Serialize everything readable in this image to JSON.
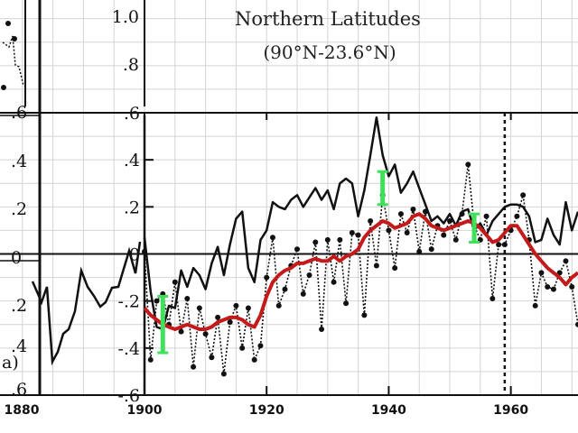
{
  "chart_data": {
    "type": "line",
    "title": "Northern Latitudes",
    "subtitle": "(90°N-23.6°N)",
    "xlabel": "",
    "ylabel": "",
    "xlim": [
      1900,
      1971
    ],
    "ylim": [
      -0.6,
      0.6
    ],
    "x_ticks": [
      "1900",
      "1920",
      "1940",
      "1960"
    ],
    "y_ticks": [
      ".6",
      ".4",
      ".2",
      "0",
      "-.2",
      "-.4",
      "-.6"
    ],
    "upper_axis_ticks": [
      "1.0",
      ".8"
    ],
    "left_panel": {
      "label": "a)",
      "x_ticks": [
        "1880"
      ],
      "y_ticks": [
        ".6",
        ".4",
        ".2",
        "0",
        ".2",
        ".4",
        ".6"
      ]
    },
    "reference_year": 1959,
    "grid": true,
    "series": [
      {
        "name": "",
        "style": "solid-black",
        "color": "#111111",
        "points": [
          [
            1900,
            0.07
          ],
          [
            1901,
            -0.16
          ],
          [
            1902,
            -0.31
          ],
          [
            1903,
            -0.32
          ],
          [
            1904,
            -0.22
          ],
          [
            1905,
            -0.23
          ],
          [
            1906,
            -0.07
          ],
          [
            1907,
            -0.14
          ],
          [
            1908,
            -0.06
          ],
          [
            1909,
            -0.09
          ],
          [
            1910,
            -0.15
          ],
          [
            1911,
            -0.04
          ],
          [
            1912,
            0.03
          ],
          [
            1913,
            -0.09
          ],
          [
            1914,
            0.04
          ],
          [
            1915,
            0.15
          ],
          [
            1916,
            0.18
          ],
          [
            1917,
            -0.06
          ],
          [
            1918,
            -0.12
          ],
          [
            1919,
            0.06
          ],
          [
            1920,
            0.1
          ],
          [
            1921,
            0.22
          ],
          [
            1922,
            0.2
          ],
          [
            1923,
            0.19
          ],
          [
            1924,
            0.23
          ],
          [
            1925,
            0.25
          ],
          [
            1926,
            0.2
          ],
          [
            1927,
            0.24
          ],
          [
            1928,
            0.28
          ],
          [
            1929,
            0.23
          ],
          [
            1930,
            0.27
          ],
          [
            1931,
            0.19
          ],
          [
            1932,
            0.3
          ],
          [
            1933,
            0.32
          ],
          [
            1934,
            0.3
          ],
          [
            1935,
            0.16
          ],
          [
            1936,
            0.27
          ],
          [
            1937,
            0.42
          ],
          [
            1938,
            0.58
          ],
          [
            1939,
            0.42
          ],
          [
            1940,
            0.33
          ],
          [
            1941,
            0.38
          ],
          [
            1942,
            0.26
          ],
          [
            1943,
            0.3
          ],
          [
            1944,
            0.35
          ],
          [
            1945,
            0.28
          ],
          [
            1946,
            0.21
          ],
          [
            1947,
            0.14
          ],
          [
            1948,
            0.16
          ],
          [
            1949,
            0.13
          ],
          [
            1950,
            0.17
          ],
          [
            1951,
            0.12
          ],
          [
            1952,
            0.18
          ],
          [
            1953,
            0.19
          ],
          [
            1954,
            0.1
          ],
          [
            1955,
            0.13
          ],
          [
            1956,
            0.08
          ],
          [
            1957,
            0.14
          ],
          [
            1958,
            0.17
          ],
          [
            1959,
            0.2
          ],
          [
            1960,
            0.21
          ],
          [
            1961,
            0.21
          ],
          [
            1962,
            0.2
          ],
          [
            1963,
            0.16
          ],
          [
            1964,
            0.05
          ],
          [
            1965,
            0.06
          ],
          [
            1966,
            0.15
          ],
          [
            1967,
            0.08
          ],
          [
            1968,
            0.04
          ],
          [
            1969,
            0.22
          ],
          [
            1970,
            0.1
          ],
          [
            1971,
            0.18
          ]
        ]
      },
      {
        "name": "",
        "style": "dotted-markers",
        "color": "#111111",
        "points": [
          [
            1900,
            0.01
          ],
          [
            1901,
            -0.45
          ],
          [
            1902,
            -0.2
          ],
          [
            1903,
            -0.17
          ],
          [
            1904,
            -0.3
          ],
          [
            1905,
            -0.12
          ],
          [
            1906,
            -0.33
          ],
          [
            1907,
            -0.19
          ],
          [
            1908,
            -0.48
          ],
          [
            1909,
            -0.23
          ],
          [
            1910,
            -0.34
          ],
          [
            1911,
            -0.44
          ],
          [
            1912,
            -0.27
          ],
          [
            1913,
            -0.51
          ],
          [
            1914,
            -0.29
          ],
          [
            1915,
            -0.22
          ],
          [
            1916,
            -0.4
          ],
          [
            1917,
            -0.23
          ],
          [
            1918,
            -0.45
          ],
          [
            1919,
            -0.39
          ],
          [
            1920,
            -0.1
          ],
          [
            1921,
            0.07
          ],
          [
            1922,
            -0.22
          ],
          [
            1923,
            -0.15
          ],
          [
            1924,
            -0.05
          ],
          [
            1925,
            0.02
          ],
          [
            1926,
            -0.17
          ],
          [
            1927,
            -0.09
          ],
          [
            1928,
            0.05
          ],
          [
            1929,
            -0.32
          ],
          [
            1930,
            0.06
          ],
          [
            1931,
            -0.12
          ],
          [
            1932,
            0.06
          ],
          [
            1933,
            -0.21
          ],
          [
            1934,
            0.09
          ],
          [
            1935,
            0.08
          ],
          [
            1936,
            -0.26
          ],
          [
            1937,
            0.14
          ],
          [
            1938,
            -0.05
          ],
          [
            1939,
            0.25
          ],
          [
            1940,
            0.1
          ],
          [
            1941,
            -0.06
          ],
          [
            1942,
            0.17
          ],
          [
            1943,
            0.09
          ],
          [
            1944,
            0.19
          ],
          [
            1945,
            0.01
          ],
          [
            1946,
            0.18
          ],
          [
            1947,
            0.02
          ],
          [
            1948,
            0.12
          ],
          [
            1949,
            0.08
          ],
          [
            1950,
            0.14
          ],
          [
            1951,
            0.06
          ],
          [
            1952,
            0.17
          ],
          [
            1953,
            0.38
          ],
          [
            1954,
            0.12
          ],
          [
            1955,
            0.06
          ],
          [
            1956,
            0.16
          ],
          [
            1957,
            -0.19
          ],
          [
            1958,
            0.04
          ],
          [
            1959,
            0.04
          ],
          [
            1960,
            0.1
          ],
          [
            1961,
            0.16
          ],
          [
            1962,
            0.25
          ],
          [
            1963,
            0.06
          ],
          [
            1964,
            -0.22
          ],
          [
            1965,
            -0.08
          ],
          [
            1966,
            -0.14
          ],
          [
            1967,
            -0.15
          ],
          [
            1968,
            -0.08
          ],
          [
            1969,
            -0.03
          ],
          [
            1970,
            -0.14
          ],
          [
            1971,
            -0.3
          ]
        ]
      },
      {
        "name": "",
        "style": "smoothed-red",
        "color": "#c41a1a",
        "points": [
          [
            1900,
            -0.23
          ],
          [
            1901,
            -0.26
          ],
          [
            1902,
            -0.28
          ],
          [
            1903,
            -0.3
          ],
          [
            1904,
            -0.31
          ],
          [
            1905,
            -0.32
          ],
          [
            1906,
            -0.31
          ],
          [
            1907,
            -0.3
          ],
          [
            1908,
            -0.31
          ],
          [
            1909,
            -0.32
          ],
          [
            1910,
            -0.32
          ],
          [
            1911,
            -0.31
          ],
          [
            1912,
            -0.29
          ],
          [
            1913,
            -0.28
          ],
          [
            1914,
            -0.27
          ],
          [
            1915,
            -0.27
          ],
          [
            1916,
            -0.28
          ],
          [
            1917,
            -0.3
          ],
          [
            1918,
            -0.31
          ],
          [
            1919,
            -0.26
          ],
          [
            1920,
            -0.18
          ],
          [
            1921,
            -0.12
          ],
          [
            1922,
            -0.09
          ],
          [
            1923,
            -0.07
          ],
          [
            1924,
            -0.06
          ],
          [
            1925,
            -0.04
          ],
          [
            1926,
            -0.04
          ],
          [
            1927,
            -0.03
          ],
          [
            1928,
            -0.02
          ],
          [
            1929,
            -0.03
          ],
          [
            1930,
            -0.03
          ],
          [
            1931,
            -0.01
          ],
          [
            1932,
            -0.03
          ],
          [
            1933,
            -0.01
          ],
          [
            1934,
            0.0
          ],
          [
            1935,
            0.02
          ],
          [
            1936,
            0.07
          ],
          [
            1937,
            0.1
          ],
          [
            1938,
            0.12
          ],
          [
            1939,
            0.14
          ],
          [
            1940,
            0.13
          ],
          [
            1941,
            0.11
          ],
          [
            1942,
            0.12
          ],
          [
            1943,
            0.13
          ],
          [
            1944,
            0.16
          ],
          [
            1945,
            0.17
          ],
          [
            1946,
            0.15
          ],
          [
            1947,
            0.12
          ],
          [
            1948,
            0.11
          ],
          [
            1949,
            0.1
          ],
          [
            1950,
            0.11
          ],
          [
            1951,
            0.12
          ],
          [
            1952,
            0.13
          ],
          [
            1953,
            0.14
          ],
          [
            1954,
            0.13
          ],
          [
            1955,
            0.11
          ],
          [
            1956,
            0.08
          ],
          [
            1957,
            0.05
          ],
          [
            1958,
            0.06
          ],
          [
            1959,
            0.09
          ],
          [
            1960,
            0.12
          ],
          [
            1961,
            0.12
          ],
          [
            1962,
            0.08
          ],
          [
            1963,
            0.04
          ],
          [
            1964,
            0.0
          ],
          [
            1965,
            -0.03
          ],
          [
            1966,
            -0.06
          ],
          [
            1967,
            -0.08
          ],
          [
            1968,
            -0.1
          ],
          [
            1969,
            -0.13
          ],
          [
            1970,
            -0.1
          ],
          [
            1971,
            -0.08
          ]
        ]
      }
    ],
    "error_bars": [
      {
        "x": 1903,
        "low": -0.42,
        "high": -0.18,
        "color": "#3fe05a"
      },
      {
        "x": 1939,
        "low": 0.21,
        "high": 0.35,
        "color": "#3fe05a"
      },
      {
        "x": 1954,
        "low": 0.05,
        "high": 0.17,
        "color": "#3fe05a"
      }
    ]
  }
}
